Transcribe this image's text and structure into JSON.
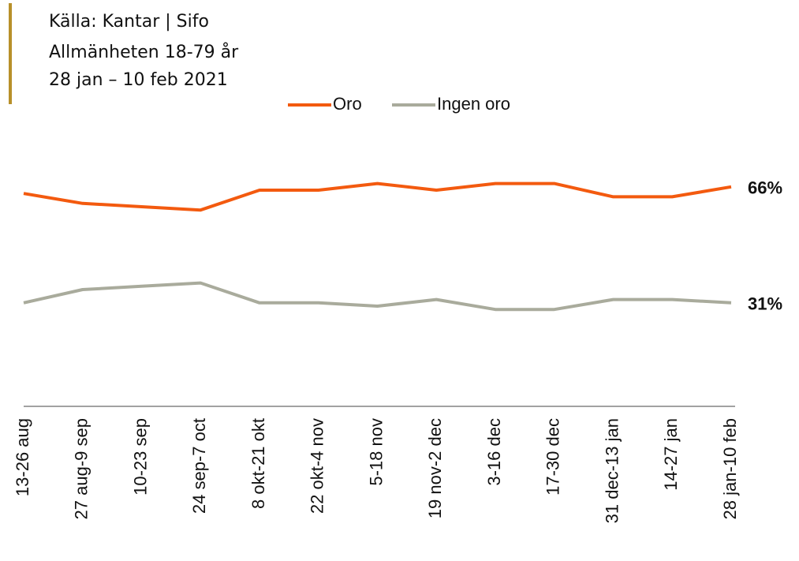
{
  "header": {
    "lines": [
      "Källa: Kantar | Sifo",
      "Allmänheten 18-79 år",
      "28 jan – 10 feb 2021"
    ]
  },
  "chart_data": {
    "type": "line",
    "categories": [
      "13-26 aug",
      "27 aug-9 sep",
      "10-23 sep",
      "24 sep-7 oct",
      "8 okt-21 okt",
      "22 okt-4 nov",
      "5-18 nov",
      "19 nov-2 dec",
      "3-16 dec",
      "17-30 dec",
      "31 dec-13 jan",
      "14-27 jan",
      "28 jan-10 feb"
    ],
    "series": [
      {
        "name": "Oro",
        "color": "#f35a0f",
        "values": [
          64,
          61,
          60,
          59,
          65,
          65,
          67,
          65,
          67,
          67,
          63,
          63,
          66
        ],
        "value_labels": [
          null,
          null,
          null,
          null,
          null,
          null,
          null,
          null,
          null,
          null,
          null,
          null,
          "66%"
        ]
      },
      {
        "name": "Ingen oro",
        "color": "#a9ab9c",
        "values": [
          31,
          35,
          36,
          37,
          31,
          31,
          30,
          32,
          29,
          29,
          32,
          32,
          31
        ],
        "value_labels": [
          null,
          null,
          null,
          null,
          null,
          null,
          null,
          null,
          null,
          null,
          null,
          null,
          "31%"
        ]
      }
    ],
    "ylim": [
      0,
      100
    ],
    "legend": "top"
  }
}
